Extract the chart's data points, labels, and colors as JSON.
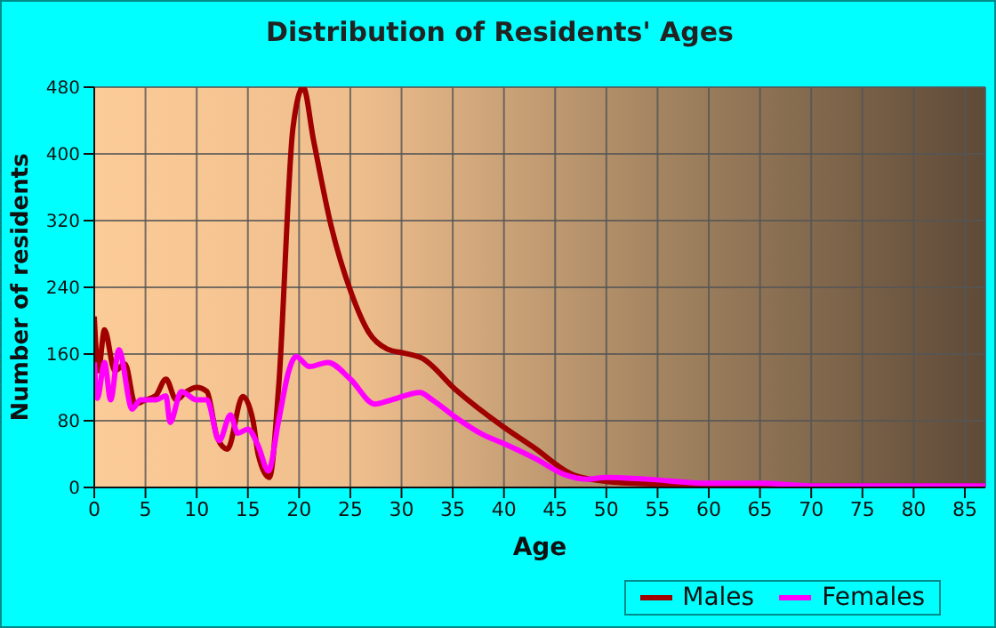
{
  "chart_data": {
    "type": "line",
    "title": "Distribution of Residents' Ages",
    "xlabel": "Age",
    "ylabel": "Number of residents",
    "xlim": [
      0,
      87
    ],
    "xticks": [
      0,
      5,
      10,
      15,
      20,
      25,
      30,
      35,
      40,
      45,
      50,
      55,
      60,
      65,
      70,
      75,
      80,
      85
    ],
    "ylim": [
      0,
      480
    ],
    "yticks": [
      0,
      80,
      160,
      240,
      320,
      400,
      480
    ],
    "grid": true,
    "legend": "bottom right",
    "marker": "none",
    "line_style": "solid",
    "series": [
      {
        "name": "Males",
        "color": "#a00000",
        "x": [
          0,
          0.4,
          1,
          2,
          3,
          4,
          5,
          6,
          7,
          8,
          9,
          10,
          11,
          12,
          13,
          14.5,
          15.5,
          16,
          17.1,
          18,
          19.4,
          20.4,
          21.4,
          23.1,
          25.1,
          26.8,
          28.6,
          30.3,
          32,
          35.3,
          39.9,
          42.8,
          46.8,
          50.3,
          55,
          60,
          70,
          87
        ],
        "values": [
          205,
          140,
          189,
          140,
          148,
          100,
          105,
          110,
          130,
          105,
          115,
          120,
          115,
          60,
          46,
          109,
          80,
          40,
          12,
          120,
          431,
          480,
          417,
          315,
          233,
          186,
          166,
          161,
          155,
          117,
          73,
          49,
          15,
          7,
          4,
          3,
          2,
          2
        ]
      },
      {
        "name": "Females",
        "color": "#ff00ff",
        "x": [
          0,
          0.3,
          1,
          1.6,
          2.4,
          3.7,
          4.5,
          6,
          7,
          7.4,
          8.5,
          10,
          11,
          12.2,
          13.3,
          14,
          15,
          16,
          17,
          18,
          19,
          19.7,
          21,
          22.8,
          25,
          27.4,
          29,
          31.8,
          33,
          35.3,
          38,
          39.9,
          43,
          46,
          48,
          50,
          53.8,
          60,
          65,
          70,
          87
        ],
        "values": [
          150,
          107,
          150,
          105,
          165,
          94,
          105,
          105,
          110,
          78,
          115,
          105,
          105,
          56,
          87,
          65,
          70,
          50,
          20,
          80,
          140,
          157,
          145,
          150,
          130,
          100,
          105,
          114,
          105,
          84,
          63,
          53,
          35,
          15,
          10,
          12,
          10,
          5,
          5,
          2,
          2
        ]
      }
    ]
  }
}
